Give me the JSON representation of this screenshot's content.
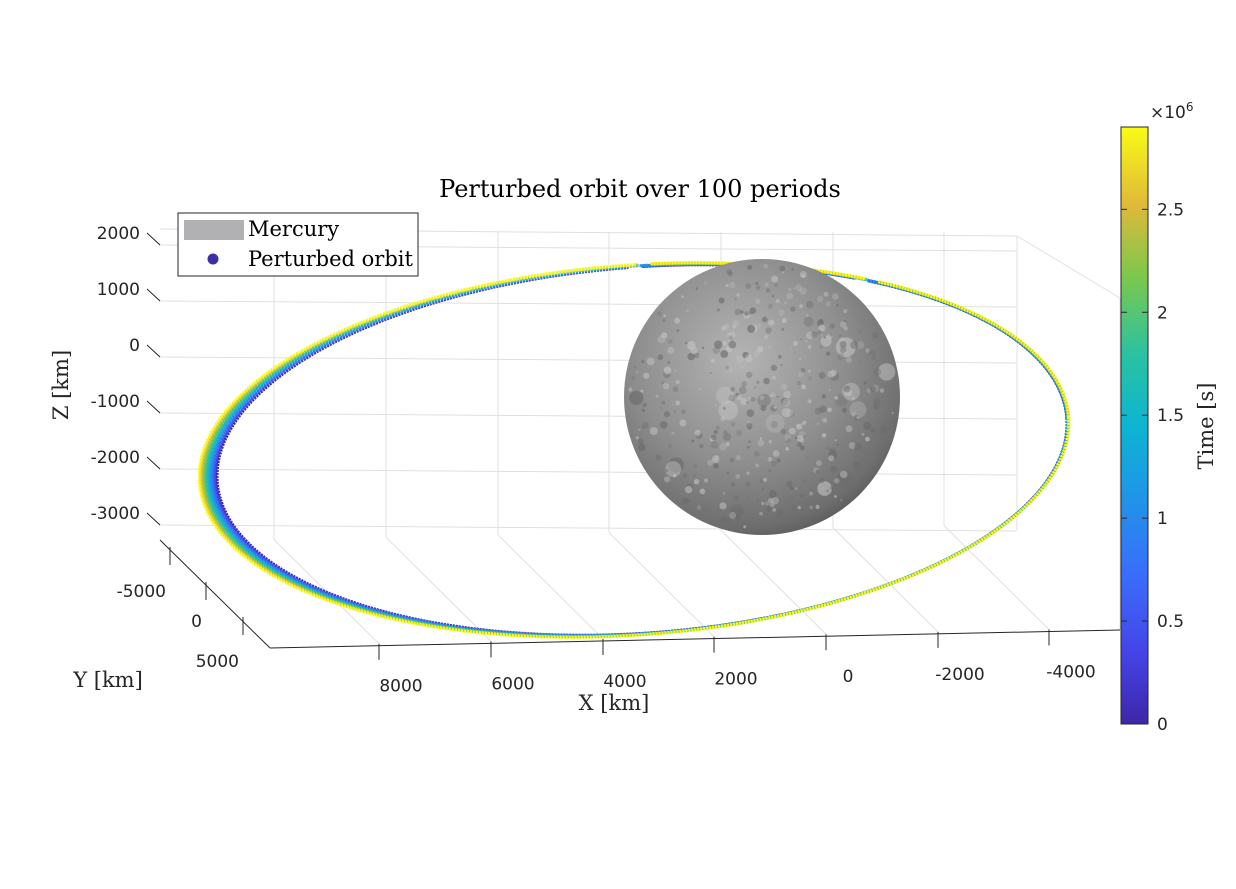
{
  "chart_data": {
    "type": "scatter",
    "title": "Perturbed orbit over 100 periods",
    "xlabel": "X [km]",
    "ylabel": "Y [km]",
    "zlabel": "Z [km]",
    "x_ticks": [
      "8000",
      "6000",
      "4000",
      "2000",
      "0",
      "-2000",
      "-4000"
    ],
    "y_ticks": [
      "-5000",
      "0",
      "5000"
    ],
    "z_ticks": [
      "2000",
      "1000",
      "0",
      "-1000",
      "-2000",
      "-3000"
    ],
    "xlim": [
      -4500,
      9500
    ],
    "zlim": [
      -3500,
      2300
    ],
    "view": "3d",
    "grid": true,
    "legend": {
      "placement": "top-left",
      "entries": [
        {
          "label": "Mercury",
          "color": "#b1b1b4",
          "marker": "patch"
        },
        {
          "label": "Perturbed orbit",
          "color": "#3f2fa6",
          "marker": "dot"
        }
      ]
    },
    "colorbar": {
      "label": "Time [s]",
      "exponent": "×10",
      "exponent_power": "6",
      "ticks": [
        "2.5",
        "2",
        "1.5",
        "1",
        "0.5",
        "0"
      ],
      "range": [
        0,
        2.9
      ],
      "colormap": "parula"
    },
    "series": [
      {
        "name": "Perturbed orbit",
        "orbit_shape": "ellipse",
        "time_start": 0,
        "time_end": 2.9
      },
      {
        "name": "Mercury",
        "body_shape": "sphere",
        "color": "#8a8a8a"
      }
    ]
  }
}
